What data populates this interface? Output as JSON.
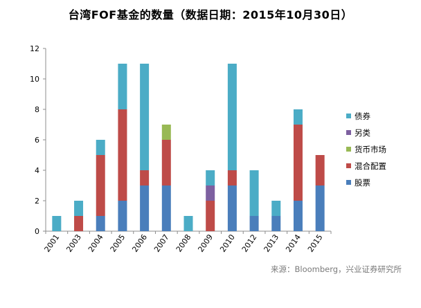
{
  "chart_data": {
    "type": "bar",
    "stacked": true,
    "title": "台湾FOF基金的数量（数据日期：2015年10月30日）",
    "xlabel": "",
    "ylabel": "",
    "categories": [
      "2001",
      "2003",
      "2004",
      "2005",
      "2006",
      "2007",
      "2008",
      "2009",
      "2010",
      "2012",
      "2013",
      "2014",
      "2015"
    ],
    "ylim": [
      0,
      12
    ],
    "yticks": [
      0,
      2,
      4,
      6,
      8,
      10,
      12
    ],
    "grid": false,
    "legend_position": "right",
    "series": [
      {
        "name": "股票",
        "color": "#4a7ebb",
        "values": [
          0,
          0,
          1,
          2,
          3,
          3,
          0,
          0,
          3,
          1,
          1,
          2,
          3
        ]
      },
      {
        "name": "混合配置",
        "color": "#be4b48",
        "values": [
          0,
          1,
          4,
          6,
          1,
          3,
          0,
          2,
          1,
          0,
          0,
          5,
          2
        ]
      },
      {
        "name": "货币市场",
        "color": "#98b954",
        "values": [
          0,
          0,
          0,
          0,
          0,
          1,
          0,
          0,
          0,
          0,
          0,
          0,
          0
        ]
      },
      {
        "name": "另类",
        "color": "#7d60a0",
        "values": [
          0,
          0,
          0,
          0,
          0,
          0,
          0,
          1,
          0,
          0,
          0,
          0,
          0
        ]
      },
      {
        "name": "债券",
        "color": "#4bacc6",
        "values": [
          1,
          1,
          1,
          3,
          7,
          0,
          1,
          1,
          7,
          3,
          1,
          1,
          0
        ]
      }
    ],
    "source": "来源：Bloomberg，兴业证券研究所"
  }
}
